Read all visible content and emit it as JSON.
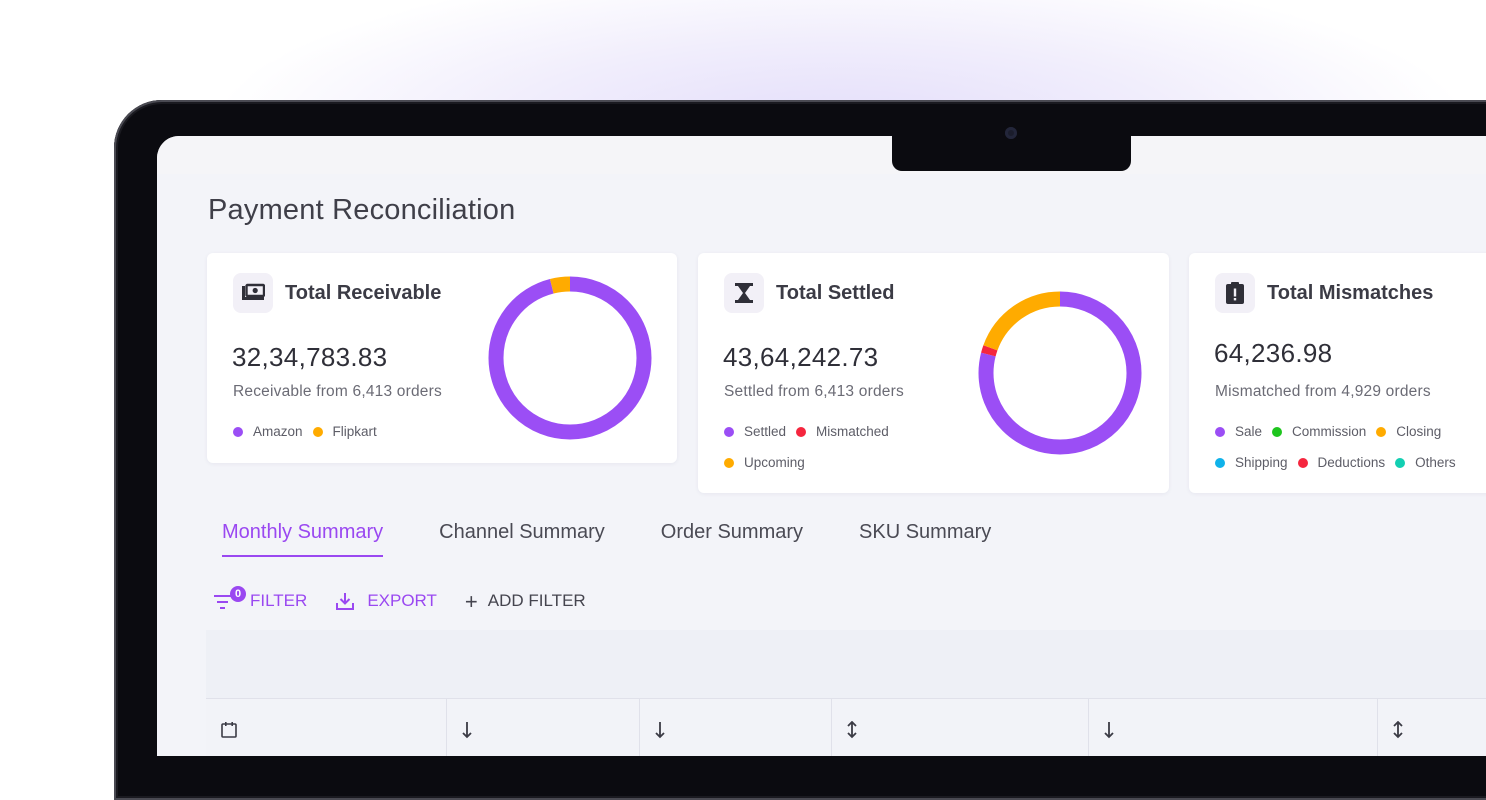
{
  "page": {
    "title": "Payment Reconciliation"
  },
  "colors": {
    "accent": "#9a48f1",
    "purple": "#9b4ef5",
    "orange": "#ffab00",
    "red": "#f5263e",
    "green": "#1ec51e",
    "blue": "#0fb2ea",
    "teal": "#13cfb2"
  },
  "cards": [
    {
      "title": "Total Receivable",
      "icon": "money-icon",
      "amount": "32,34,783.83",
      "subtitle": "Receivable from 6,413 orders",
      "legend": [
        "Amazon",
        "Flipkart"
      ]
    },
    {
      "title": "Total Settled",
      "icon": "hourglass-icon",
      "amount": "43,64,242.73",
      "subtitle": "Settled from 6,413 orders",
      "legend": [
        "Settled",
        "Mismatched",
        "Upcoming"
      ]
    },
    {
      "title": "Total Mismatches",
      "icon": "clipboard-alert-icon",
      "amount": "64,236.98",
      "subtitle": "Mismatched from 4,929 orders",
      "legend": [
        "Sale",
        "Commission",
        "Closing",
        "Shipping",
        "Deductions",
        "Others"
      ]
    }
  ],
  "tabs": [
    "Monthly Summary",
    "Channel Summary",
    "Order Summary",
    "SKU Summary"
  ],
  "active_tab": "Monthly Summary",
  "toolbar": {
    "filter_label": "FILTER",
    "filter_count": "0",
    "export_label": "EXPORT",
    "add_filter_label": "ADD FILTER"
  },
  "donuts": {
    "receivable": [
      {
        "label": "Amazon",
        "fraction": 0.96
      },
      {
        "label": "Flipkart",
        "fraction": 0.04
      }
    ],
    "settled": [
      {
        "label": "Settled",
        "fraction": 0.79
      },
      {
        "label": "Mismatched",
        "fraction": 0.015
      },
      {
        "label": "Upcoming",
        "fraction": 0.195
      }
    ]
  }
}
